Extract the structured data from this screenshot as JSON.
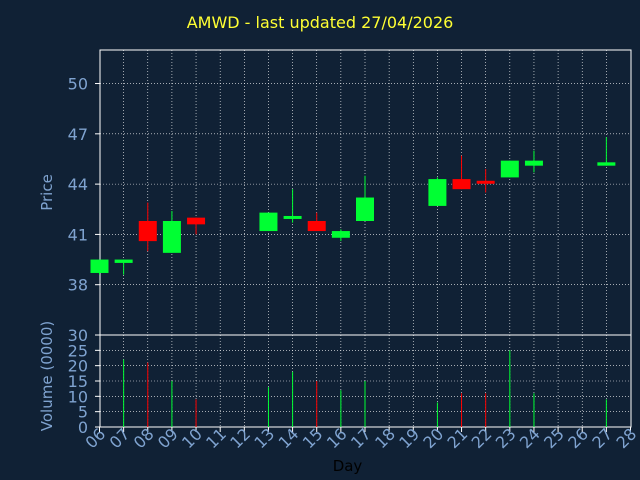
{
  "chart_data": [
    {
      "type": "candlestick",
      "title": "AMWD - last updated 27/04/2026",
      "ylabel": "Price",
      "ylim": [
        35,
        52
      ],
      "yticks": [
        38,
        41,
        44,
        47,
        50
      ],
      "grid": true,
      "up_color": "#00ff33",
      "down_color": "#ff0000",
      "candles": [
        {
          "day": 6,
          "open": 38.7,
          "high": 39.5,
          "low": 38.6,
          "close": 39.5
        },
        {
          "day": 7,
          "open": 39.3,
          "high": 39.5,
          "low": 38.6,
          "close": 39.5
        },
        {
          "day": 8,
          "open": 41.8,
          "high": 42.9,
          "low": 40.0,
          "close": 40.6
        },
        {
          "day": 9,
          "open": 39.9,
          "high": 42.4,
          "low": 39.9,
          "close": 41.8
        },
        {
          "day": 10,
          "open": 42.0,
          "high": 42.0,
          "low": 41.0,
          "close": 41.6
        },
        {
          "day": 13,
          "open": 41.2,
          "high": 42.3,
          "low": 41.2,
          "close": 42.3
        },
        {
          "day": 14,
          "open": 42.0,
          "high": 43.7,
          "low": 41.7,
          "close": 42.1
        },
        {
          "day": 15,
          "open": 41.8,
          "high": 42.3,
          "low": 41.2,
          "close": 41.2
        },
        {
          "day": 16,
          "open": 40.8,
          "high": 41.3,
          "low": 40.6,
          "close": 41.2
        },
        {
          "day": 17,
          "open": 41.8,
          "high": 44.5,
          "low": 41.8,
          "close": 43.2
        },
        {
          "day": 20,
          "open": 42.7,
          "high": 44.4,
          "low": 42.7,
          "close": 44.3
        },
        {
          "day": 21,
          "open": 44.3,
          "high": 45.7,
          "low": 43.7,
          "close": 43.7
        },
        {
          "day": 22,
          "open": 44.2,
          "high": 44.9,
          "low": 43.5,
          "close": 44.1
        },
        {
          "day": 23,
          "open": 44.4,
          "high": 45.4,
          "low": 44.4,
          "close": 45.4
        },
        {
          "day": 24,
          "open": 45.1,
          "high": 46.0,
          "low": 44.7,
          "close": 45.4
        },
        {
          "day": 27,
          "open": 45.1,
          "high": 46.8,
          "low": 45.1,
          "close": 45.3
        }
      ]
    },
    {
      "type": "bar",
      "ylabel": "Volume (0000)",
      "xlabel": "Day",
      "ylim": [
        0,
        30
      ],
      "yticks": [
        0,
        5,
        10,
        15,
        20,
        25,
        30
      ],
      "grid": true,
      "x_categories": [
        "06",
        "07",
        "08",
        "09",
        "10",
        "11",
        "12",
        "13",
        "14",
        "15",
        "16",
        "17",
        "18",
        "19",
        "20",
        "21",
        "22",
        "23",
        "24",
        "25",
        "26",
        "27",
        "28"
      ],
      "volumes": [
        {
          "day": 7,
          "value": 22,
          "up": true
        },
        {
          "day": 8,
          "value": 21,
          "up": false
        },
        {
          "day": 9,
          "value": 15,
          "up": true
        },
        {
          "day": 10,
          "value": 9,
          "up": false
        },
        {
          "day": 13,
          "value": 13,
          "up": true
        },
        {
          "day": 14,
          "value": 18,
          "up": true
        },
        {
          "day": 15,
          "value": 15,
          "up": false
        },
        {
          "day": 16,
          "value": 12,
          "up": true
        },
        {
          "day": 17,
          "value": 15,
          "up": true
        },
        {
          "day": 20,
          "value": 8,
          "up": true
        },
        {
          "day": 21,
          "value": 11,
          "up": false
        },
        {
          "day": 22,
          "value": 11,
          "up": false
        },
        {
          "day": 23,
          "value": 25,
          "up": true
        },
        {
          "day": 24,
          "value": 11,
          "up": true
        },
        {
          "day": 27,
          "value": 9,
          "up": true
        }
      ]
    }
  ]
}
